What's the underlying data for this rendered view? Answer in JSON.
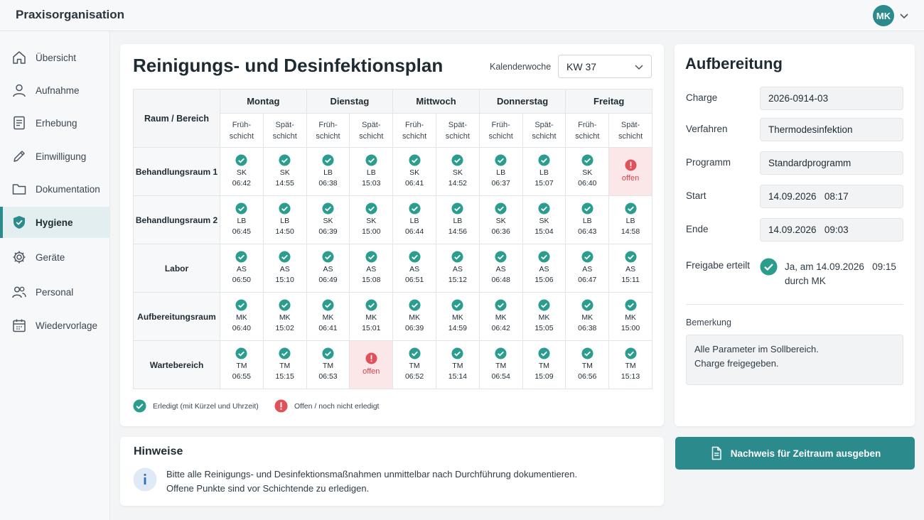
{
  "app": {
    "title": "Praxisorganisation",
    "user_initials": "MK"
  },
  "colors": {
    "accent": "#2a8a8c",
    "done": "#2a9d8f",
    "open": "#d8434d",
    "open_bg": "#fbe7e8"
  },
  "sidebar": {
    "items": [
      {
        "label": "Übersicht",
        "icon": "home-icon",
        "active": false
      },
      {
        "label": "Aufnahme",
        "icon": "user-icon",
        "active": false
      },
      {
        "label": "Erhebung",
        "icon": "form-icon",
        "active": false
      },
      {
        "label": "Einwilligung",
        "icon": "pen-icon",
        "active": false
      },
      {
        "label": "Dokumentation",
        "icon": "folder-icon",
        "active": false
      },
      {
        "label": "Hygiene",
        "icon": "shield-icon",
        "active": true
      },
      {
        "label": "Geräte",
        "icon": "gear-icon",
        "active": false
      },
      {
        "label": "Personal",
        "icon": "users-icon",
        "active": false
      },
      {
        "label": "Wiedervorlage",
        "icon": "calendar-icon",
        "active": false
      }
    ]
  },
  "plan": {
    "title": "Reinigungs- und Desinfektionsplan",
    "week_label": "Kalenderwoche",
    "week_value": "KW 37",
    "corner_header": "Raum / Bereich",
    "days": [
      "Montag",
      "Dienstag",
      "Mittwoch",
      "Donnerstag",
      "Freitag"
    ],
    "shifts": [
      "Früh-\nschicht",
      "Spät-\nschicht"
    ],
    "rows": [
      {
        "room": "Behandlungsraum 1",
        "cells": [
          {
            "status": "done",
            "initials": "SK",
            "time": "06:42"
          },
          {
            "status": "done",
            "initials": "SK",
            "time": "14:55"
          },
          {
            "status": "done",
            "initials": "LB",
            "time": "06:38"
          },
          {
            "status": "done",
            "initials": "LB",
            "time": "15:03"
          },
          {
            "status": "done",
            "initials": "SK",
            "time": "06:41"
          },
          {
            "status": "done",
            "initials": "SK",
            "time": "14:52"
          },
          {
            "status": "done",
            "initials": "LB",
            "time": "06:37"
          },
          {
            "status": "done",
            "initials": "LB",
            "time": "15:07"
          },
          {
            "status": "done",
            "initials": "SK",
            "time": "06:40"
          },
          {
            "status": "open",
            "label": "offen"
          }
        ]
      },
      {
        "room": "Behandlungsraum 2",
        "cells": [
          {
            "status": "done",
            "initials": "LB",
            "time": "06:45"
          },
          {
            "status": "done",
            "initials": "LB",
            "time": "14:50"
          },
          {
            "status": "done",
            "initials": "SK",
            "time": "06:39"
          },
          {
            "status": "done",
            "initials": "SK",
            "time": "15:00"
          },
          {
            "status": "done",
            "initials": "LB",
            "time": "06:44"
          },
          {
            "status": "done",
            "initials": "LB",
            "time": "14:56"
          },
          {
            "status": "done",
            "initials": "SK",
            "time": "06:36"
          },
          {
            "status": "done",
            "initials": "SK",
            "time": "15:04"
          },
          {
            "status": "done",
            "initials": "LB",
            "time": "06:43"
          },
          {
            "status": "done",
            "initials": "LB",
            "time": "14:58"
          }
        ]
      },
      {
        "room": "Labor",
        "cells": [
          {
            "status": "done",
            "initials": "AS",
            "time": "06:50"
          },
          {
            "status": "done",
            "initials": "AS",
            "time": "15:10"
          },
          {
            "status": "done",
            "initials": "AS",
            "time": "06:49"
          },
          {
            "status": "done",
            "initials": "AS",
            "time": "15:08"
          },
          {
            "status": "done",
            "initials": "AS",
            "time": "06:51"
          },
          {
            "status": "done",
            "initials": "AS",
            "time": "15:12"
          },
          {
            "status": "done",
            "initials": "AS",
            "time": "06:48"
          },
          {
            "status": "done",
            "initials": "AS",
            "time": "15:06"
          },
          {
            "status": "done",
            "initials": "AS",
            "time": "06:47"
          },
          {
            "status": "done",
            "initials": "AS",
            "time": "15:11"
          }
        ]
      },
      {
        "room": "Aufbereitungsraum",
        "cells": [
          {
            "status": "done",
            "initials": "MK",
            "time": "06:40"
          },
          {
            "status": "done",
            "initials": "MK",
            "time": "15:02"
          },
          {
            "status": "done",
            "initials": "MK",
            "time": "06:41"
          },
          {
            "status": "done",
            "initials": "MK",
            "time": "15:01"
          },
          {
            "status": "done",
            "initials": "MK",
            "time": "06:39"
          },
          {
            "status": "done",
            "initials": "MK",
            "time": "14:59"
          },
          {
            "status": "done",
            "initials": "MK",
            "time": "06:42"
          },
          {
            "status": "done",
            "initials": "MK",
            "time": "15:05"
          },
          {
            "status": "done",
            "initials": "MK",
            "time": "06:38"
          },
          {
            "status": "done",
            "initials": "MK",
            "time": "15:00"
          }
        ]
      },
      {
        "room": "Wartebereich",
        "cells": [
          {
            "status": "done",
            "initials": "TM",
            "time": "06:55"
          },
          {
            "status": "done",
            "initials": "TM",
            "time": "15:15"
          },
          {
            "status": "done",
            "initials": "TM",
            "time": "06:53"
          },
          {
            "status": "open",
            "label": "offen"
          },
          {
            "status": "done",
            "initials": "TM",
            "time": "06:52"
          },
          {
            "status": "done",
            "initials": "TM",
            "time": "15:14"
          },
          {
            "status": "done",
            "initials": "TM",
            "time": "06:54"
          },
          {
            "status": "done",
            "initials": "TM",
            "time": "15:09"
          },
          {
            "status": "done",
            "initials": "TM",
            "time": "06:56"
          },
          {
            "status": "done",
            "initials": "TM",
            "time": "15:13"
          }
        ]
      }
    ],
    "legend": {
      "done": "Erledigt (mit Kürzel und Uhrzeit)",
      "open": "Offen / noch nicht erledigt"
    }
  },
  "notes": {
    "title": "Hinweise",
    "line1": "Bitte alle Reinigungs- und Desinfektionsmaßnahmen unmittelbar nach Durchführung dokumentieren.",
    "line2": "Offene Punkte sind vor Schichtende zu erledigen."
  },
  "processing": {
    "title": "Aufbereitung",
    "fields": [
      {
        "label": "Charge",
        "value": "2026-0914-03"
      },
      {
        "label": "Verfahren",
        "value": "Thermodesinfektion"
      },
      {
        "label": "Programm",
        "value": "Standardprogramm"
      },
      {
        "label": "Start",
        "value": "14.09.2026   08:17"
      },
      {
        "label": "Ende",
        "value": "14.09.2026   09:03"
      }
    ],
    "release_label": "Freigabe erteilt",
    "release_line1": "Ja, am 14.09.2026   09:15",
    "release_line2": "durch MK",
    "remark_label": "Bemerkung",
    "remark_line1": "Alle Parameter im Sollbereich.",
    "remark_line2": "Charge freigegeben."
  },
  "export_button": {
    "label": "Nachweis für Zeitraum ausgeben"
  }
}
